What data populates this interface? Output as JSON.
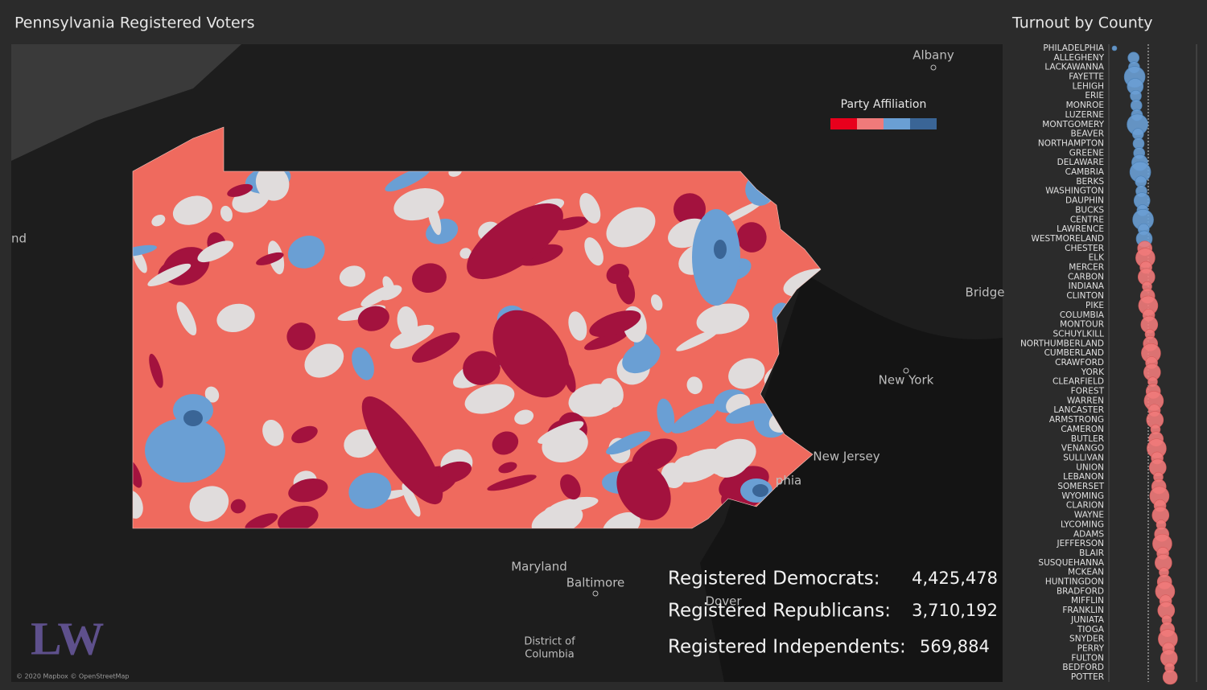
{
  "header": {
    "title": "Pennsylvania Registered Voters"
  },
  "map": {
    "place_labels": [
      "Albany",
      "nd",
      "Bridge",
      "New York",
      "New Jersey",
      "phia",
      "Maryland",
      "Baltimore",
      "Dover",
      "District of",
      "Columbia"
    ],
    "attribution": "© 2020 Mapbox © OpenStreetMap",
    "logo": "LW"
  },
  "legend": {
    "title": "Party Affiliation"
  },
  "stats": [
    {
      "label": "Registered Democrats:",
      "value": "4,425,478"
    },
    {
      "label": "Registered Republicans:",
      "value": "3,710,192"
    },
    {
      "label": "Registered Independents:",
      "value": "569,884"
    }
  ],
  "turnout": {
    "title": "Turnout by County",
    "counties": [
      "PHILADELPHIA",
      "ALLEGHENY",
      "LACKAWANNA",
      "FAYETTE",
      "LEHIGH",
      "ERIE",
      "MONROE",
      "LUZERNE",
      "MONTGOMERY",
      "BEAVER",
      "NORTHAMPTON",
      "GREENE",
      "DELAWARE",
      "CAMBRIA",
      "BERKS",
      "WASHINGTON",
      "DAUPHIN",
      "BUCKS",
      "CENTRE",
      "LAWRENCE",
      "WESTMORELAND",
      "CHESTER",
      "ELK",
      "MERCER",
      "CARBON",
      "INDIANA",
      "CLINTON",
      "PIKE",
      "COLUMBIA",
      "MONTOUR",
      "SCHUYLKILL",
      "NORTHUMBERLAND",
      "CUMBERLAND",
      "CRAWFORD",
      "YORK",
      "CLEARFIELD",
      "FOREST",
      "WARREN",
      "LANCASTER",
      "ARMSTRONG",
      "CAMERON",
      "BUTLER",
      "VENANGO",
      "SULLIVAN",
      "UNION",
      "LEBANON",
      "SOMERSET",
      "WYOMING",
      "CLARION",
      "WAYNE",
      "LYCOMING",
      "ADAMS",
      "JEFFERSON",
      "BLAIR",
      "SUSQUEHANNA",
      "MCKEAN",
      "HUNTINGDON",
      "BRADFORD",
      "MIFFLIN",
      "FRANKLIN",
      "JUNIATA",
      "TIOGA",
      "SNYDER",
      "PERRY",
      "FULTON",
      "BEDFORD",
      "POTTER"
    ]
  }
}
